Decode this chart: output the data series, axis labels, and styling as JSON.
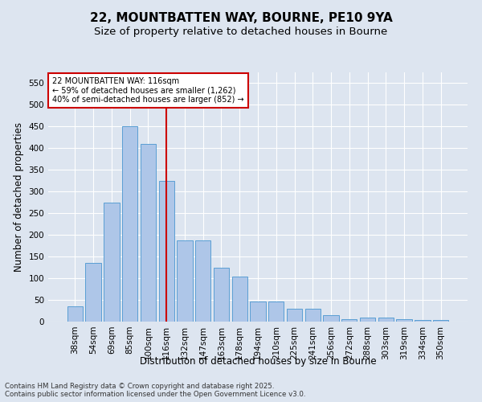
{
  "title1": "22, MOUNTBATTEN WAY, BOURNE, PE10 9YA",
  "title2": "Size of property relative to detached houses in Bourne",
  "xlabel": "Distribution of detached houses by size in Bourne",
  "ylabel": "Number of detached properties",
  "categories": [
    "38sqm",
    "54sqm",
    "69sqm",
    "85sqm",
    "100sqm",
    "116sqm",
    "132sqm",
    "147sqm",
    "163sqm",
    "178sqm",
    "194sqm",
    "210sqm",
    "225sqm",
    "241sqm",
    "256sqm",
    "272sqm",
    "288sqm",
    "303sqm",
    "319sqm",
    "334sqm",
    "350sqm"
  ],
  "values": [
    35,
    135,
    275,
    450,
    410,
    325,
    188,
    188,
    125,
    103,
    46,
    46,
    30,
    30,
    15,
    5,
    9,
    10,
    5,
    4,
    4
  ],
  "bar_color": "#aec6e8",
  "bar_edge_color": "#5a9fd4",
  "vline_idx": 5,
  "vline_color": "#cc0000",
  "annotation_text": "22 MOUNTBATTEN WAY: 116sqm\n← 59% of detached houses are smaller (1,262)\n40% of semi-detached houses are larger (852) →",
  "annotation_edge_color": "#cc0000",
  "bg_color": "#dde5f0",
  "plot_bg_color": "#dde5f0",
  "grid_color": "#ffffff",
  "ylim": [
    0,
    575
  ],
  "yticks": [
    0,
    50,
    100,
    150,
    200,
    250,
    300,
    350,
    400,
    450,
    500,
    550
  ],
  "title1_fontsize": 11,
  "title2_fontsize": 9.5,
  "axis_label_fontsize": 8.5,
  "tick_fontsize": 7.5,
  "ann_fontsize": 7.0,
  "footer1": "Contains HM Land Registry data © Crown copyright and database right 2025.",
  "footer2": "Contains public sector information licensed under the Open Government Licence v3.0.",
  "footer_fontsize": 6.2
}
